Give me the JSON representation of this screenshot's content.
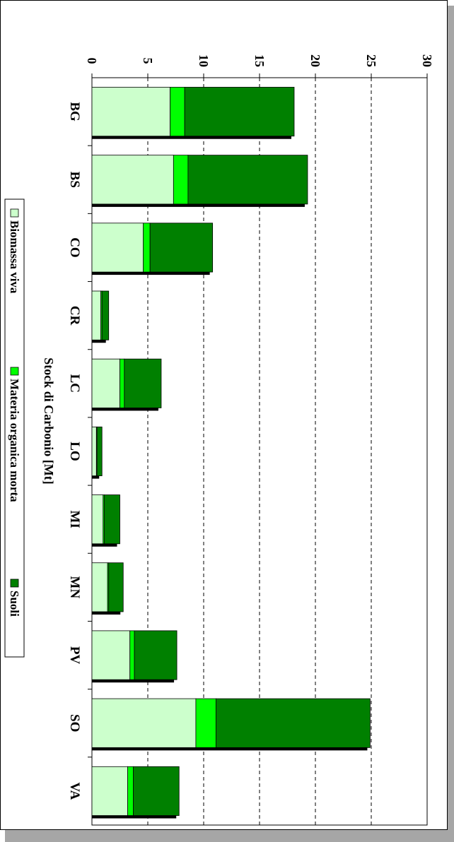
{
  "chart_data": {
    "type": "bar",
    "stacked": true,
    "orientation": "horizontal",
    "title": "Stock di Carbonio [Mt]",
    "categories": [
      "BG",
      "BS",
      "CO",
      "CR",
      "LC",
      "LO",
      "MI",
      "MN",
      "PV",
      "SO",
      "VA"
    ],
    "series": [
      {
        "name": "Biomassa viva",
        "color": "#ccffcc",
        "values": [
          7.0,
          7.3,
          4.6,
          0.8,
          2.5,
          0.4,
          1.0,
          1.4,
          3.4,
          9.3,
          3.2
        ]
      },
      {
        "name": "Materia organica morta",
        "color": "#00ff00",
        "values": [
          1.3,
          1.3,
          0.6,
          0.1,
          0.4,
          0.05,
          0.1,
          0.1,
          0.4,
          1.8,
          0.5
        ]
      },
      {
        "name": "Suoli",
        "color": "#008000",
        "values": [
          9.8,
          10.7,
          5.6,
          0.6,
          3.3,
          0.45,
          1.4,
          1.3,
          3.8,
          13.8,
          4.1
        ]
      }
    ],
    "xlim": [
      0,
      30
    ],
    "xticks": [
      0,
      5,
      10,
      15,
      20,
      25,
      30
    ],
    "grid": true,
    "legend_position": "bottom"
  }
}
